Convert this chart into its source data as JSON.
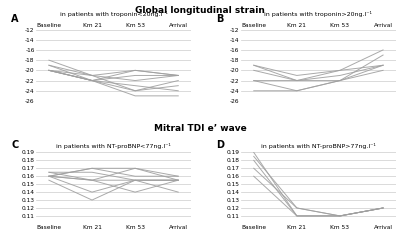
{
  "title": "Global longitudinal strain",
  "title2": "Mitral TDI e’ wave",
  "panel_A_title": "in patients with troponin<20ng.l⁻¹",
  "panel_B_title": "in patients with troponin>20ng.l⁻¹",
  "panel_C_title": "in patients with NT-proBNP<77ng.l⁻¹",
  "panel_D_title": "in patients with NT-proBNP>77ng.l⁻¹",
  "x_labels": [
    "Baseline",
    "Km 21",
    "Km 53",
    "Arrival"
  ],
  "panel_A_lines": [
    [
      -20,
      -21,
      -20,
      -21
    ],
    [
      -20,
      -22,
      -23,
      -24
    ],
    [
      -20,
      -22,
      -25,
      -25
    ],
    [
      -18,
      -21,
      -24,
      -22
    ],
    [
      -19,
      -21,
      -22,
      -21
    ],
    [
      -20,
      -22,
      -21,
      -21
    ],
    [
      -20,
      -22,
      -24,
      -23
    ],
    [
      -19,
      -22,
      -20,
      -21
    ]
  ],
  "panel_B_lines": [
    [
      -20,
      -22,
      -22,
      -19
    ],
    [
      -19,
      -22,
      -21,
      -19
    ],
    [
      -19,
      -21,
      -20,
      -19
    ],
    [
      -24,
      -24,
      -22,
      -20
    ],
    [
      -22,
      -24,
      -22,
      -17
    ],
    [
      -22,
      -22,
      -20,
      -16
    ]
  ],
  "panel_C_lines": [
    [
      0.16,
      0.17,
      0.16,
      0.16
    ],
    [
      0.16,
      0.17,
      0.17,
      0.16
    ],
    [
      0.165,
      0.155,
      0.17,
      0.155
    ],
    [
      0.16,
      0.155,
      0.155,
      0.155
    ],
    [
      0.16,
      0.14,
      0.155,
      0.155
    ],
    [
      0.16,
      0.155,
      0.14,
      0.155
    ],
    [
      0.165,
      0.165,
      0.155,
      0.155
    ],
    [
      0.155,
      0.13,
      0.155,
      0.14
    ]
  ],
  "panel_D_lines": [
    [
      0.19,
      0.11,
      0.11,
      0.12
    ],
    [
      0.185,
      0.12,
      0.11,
      0.12
    ],
    [
      0.18,
      0.11,
      0.11,
      0.12
    ],
    [
      0.17,
      0.12,
      0.11,
      0.12
    ],
    [
      0.16,
      0.11,
      0.11,
      0.12
    ]
  ],
  "line_color": "#a0a0a0",
  "bg_color": "#ffffff",
  "ylim_AB": [
    -26,
    -12
  ],
  "yticks_AB": [
    -26,
    -24,
    -22,
    -20,
    -18,
    -16,
    -14,
    -12
  ],
  "ylim_CD": [
    0.1,
    0.19
  ],
  "yticks_CD": [
    0.19,
    0.18,
    0.17,
    0.16,
    0.15,
    0.14,
    0.13,
    0.12,
    0.11
  ]
}
